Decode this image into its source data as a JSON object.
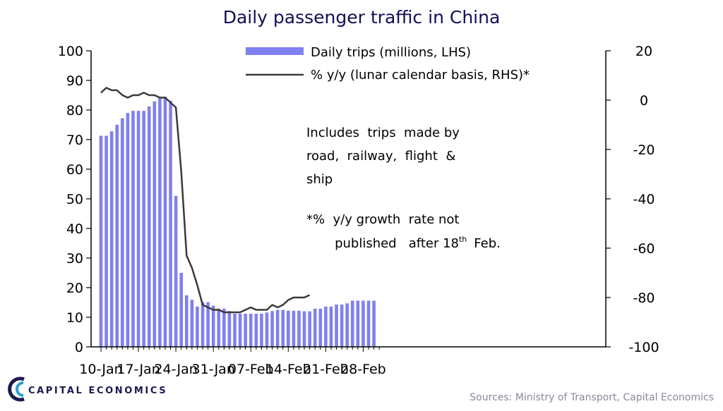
{
  "chart_data": {
    "type": "bar",
    "title": "Daily passenger traffic in China",
    "x_tick_labels": [
      "10-Jan",
      "17-Jan",
      "24-Jan",
      "31-Jan",
      "07-Feb",
      "14-Feb",
      "21-Feb",
      "28-Feb"
    ],
    "y_left": {
      "ylim": [
        0,
        100
      ],
      "ticks": [
        "0",
        "10",
        "20",
        "30",
        "40",
        "50",
        "60",
        "70",
        "80",
        "90",
        "100"
      ]
    },
    "y_right": {
      "ylim": [
        -100,
        20
      ],
      "ticks": [
        "-100",
        "-80",
        "-60",
        "-40",
        "-20",
        "0",
        "20"
      ]
    },
    "series": [
      {
        "name": "Daily trips (millions, LHS)",
        "type": "bar",
        "axis": "left",
        "color": "#8080f0",
        "x": [
          "10-Jan",
          "11-Jan",
          "12-Jan",
          "13-Jan",
          "14-Jan",
          "15-Jan",
          "16-Jan",
          "17-Jan",
          "18-Jan",
          "19-Jan",
          "20-Jan",
          "21-Jan",
          "22-Jan",
          "23-Jan",
          "24-Jan",
          "25-Jan",
          "26-Jan",
          "27-Jan",
          "28-Jan",
          "29-Jan",
          "30-Jan",
          "31-Jan",
          "01-Feb",
          "02-Feb",
          "03-Feb",
          "04-Feb",
          "05-Feb",
          "06-Feb",
          "07-Feb",
          "08-Feb",
          "09-Feb",
          "10-Feb",
          "11-Feb",
          "12-Feb",
          "13-Feb",
          "14-Feb",
          "15-Feb",
          "16-Feb",
          "17-Feb",
          "18-Feb",
          "19-Feb",
          "20-Feb",
          "21-Feb",
          "22-Feb",
          "23-Feb",
          "24-Feb",
          "25-Feb",
          "26-Feb",
          "27-Feb",
          "28-Feb",
          "29-Feb",
          "01-Mar"
        ],
        "values": [
          71.3,
          71.3,
          72.8,
          75.0,
          77.2,
          79.0,
          79.7,
          79.7,
          79.7,
          81.2,
          82.9,
          84.5,
          84.5,
          83.1,
          51.0,
          25.0,
          17.4,
          15.9,
          13.6,
          15.1,
          15.1,
          13.9,
          12.9,
          12.9,
          12.1,
          11.2,
          11.2,
          11.2,
          11.2,
          11.2,
          11.2,
          11.6,
          12.1,
          12.5,
          12.5,
          12.2,
          12.2,
          12.2,
          12.0,
          12.0,
          12.9,
          12.9,
          13.6,
          13.6,
          14.3,
          14.3,
          14.7,
          15.6,
          15.6,
          15.6,
          15.6,
          15.6
        ]
      },
      {
        "name": "% y/y (lunar calendar basis, RHS)*",
        "type": "line",
        "axis": "right",
        "color": "#3a3a3a",
        "x": [
          "10-Jan",
          "11-Jan",
          "12-Jan",
          "13-Jan",
          "14-Jan",
          "15-Jan",
          "16-Jan",
          "17-Jan",
          "18-Jan",
          "19-Jan",
          "20-Jan",
          "21-Jan",
          "22-Jan",
          "23-Jan",
          "24-Jan",
          "25-Jan",
          "26-Jan",
          "27-Jan",
          "28-Jan",
          "29-Jan",
          "30-Jan",
          "31-Jan",
          "01-Feb",
          "02-Feb",
          "03-Feb",
          "04-Feb",
          "05-Feb",
          "06-Feb",
          "07-Feb",
          "08-Feb",
          "09-Feb",
          "10-Feb",
          "11-Feb",
          "12-Feb",
          "13-Feb",
          "14-Feb",
          "15-Feb",
          "16-Feb",
          "17-Feb",
          "18-Feb"
        ],
        "values": [
          3,
          5,
          4,
          4,
          2,
          1,
          2,
          2,
          3,
          2,
          2,
          1,
          1,
          -1,
          -3,
          -29,
          -63,
          -68,
          -75,
          -83,
          -84,
          -85,
          -85,
          -86,
          -86,
          -86,
          -86,
          -85,
          -84,
          -85,
          -85,
          -85,
          -83,
          -84,
          -83,
          -81,
          -80,
          -80,
          -80,
          -79
        ]
      }
    ],
    "annotation_lines": [
      "Includes  trips  made by",
      "road,  railway,  flight  &",
      "ship",
      "*%  y/y growth  rate not",
      "published   after 18",
      "th",
      "Feb."
    ]
  },
  "source": "Sources: Ministry of Transport, Capital Economics",
  "brand": {
    "name": "CAPITAL ECONOMICS",
    "colors": {
      "navy": "#1a1a4e",
      "teal": "#2a9fd6"
    }
  }
}
